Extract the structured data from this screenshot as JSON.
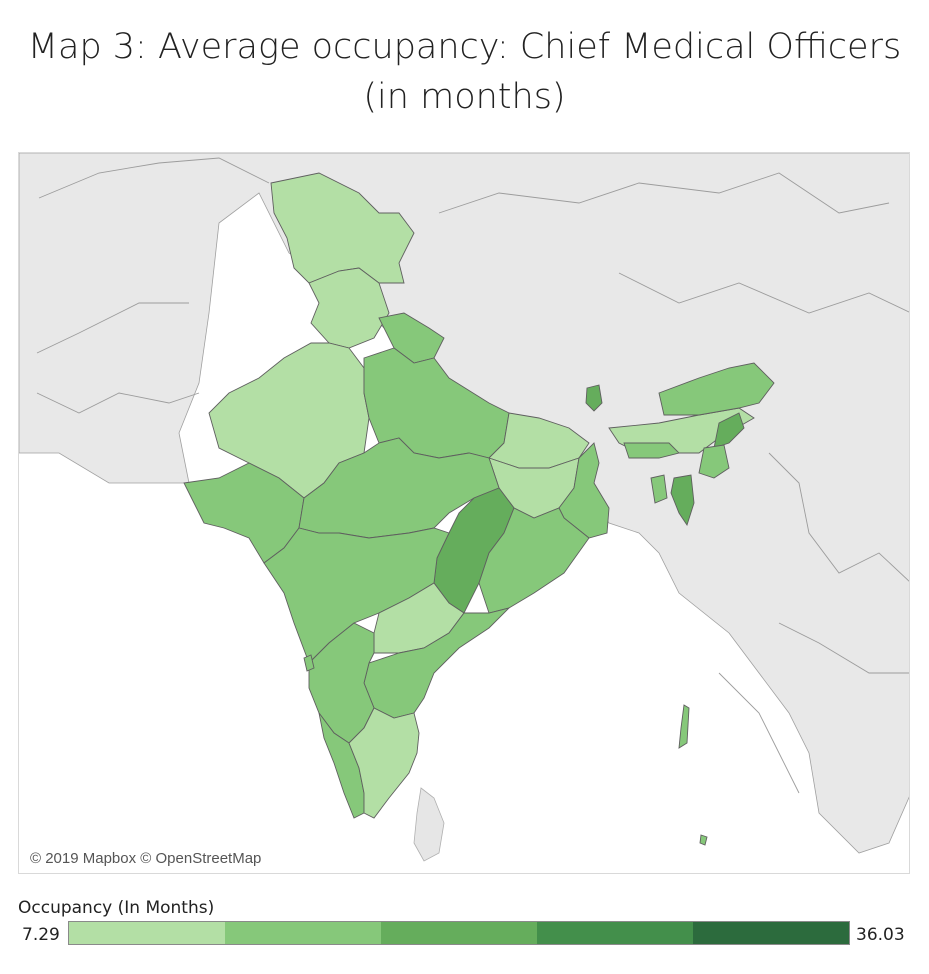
{
  "title_line1": "Map 3: Average occupancy: Chief Medical Officers",
  "title_line2": "(in months)",
  "attribution": "© 2019 Mapbox © OpenStreetMap",
  "legend": {
    "title": "Occupancy (In Months)",
    "min": "7.29",
    "max": "36.03",
    "colors": [
      "#b3dfa5",
      "#86c87a",
      "#65ad5c",
      "#438f4b",
      "#2c6b3d"
    ]
  },
  "colors": {
    "land": "#e7e7e7",
    "water": "#ffffff",
    "border": "#9a9a9a"
  }
}
